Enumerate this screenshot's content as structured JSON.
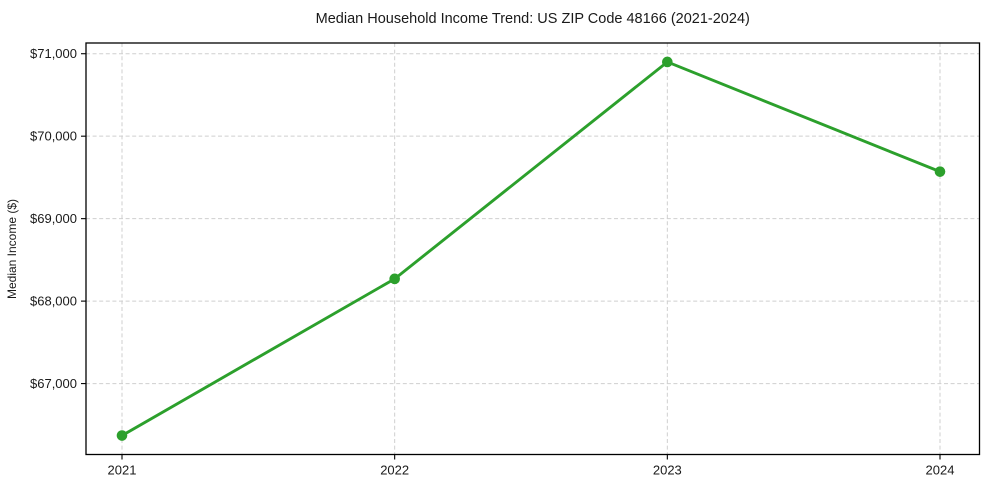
{
  "chart_data": {
    "type": "line",
    "title": "Median Household Income Trend: US ZIP Code 48166 (2021-2024)",
    "xlabel": "",
    "ylabel": "Median Income ($)",
    "categories": [
      "2021",
      "2022",
      "2023",
      "2024"
    ],
    "series": [
      {
        "values": [
          66370,
          68270,
          70900,
          69570
        ],
        "color": "#2ca02c",
        "marker": "circle",
        "line_style": "solid"
      }
    ],
    "ytick_values": [
      67000,
      68000,
      69000,
      70000,
      71000
    ],
    "ytick_labels": [
      "$67,000",
      "$68,000",
      "$69,000",
      "$70,000",
      "$71,000"
    ],
    "ylim": [
      66140,
      71130
    ],
    "grid": {
      "visible": true,
      "style": "dashed",
      "color": "#cfcfcf",
      "axes": "both"
    },
    "legend": {
      "visible": false,
      "position": "none"
    },
    "plot_background": "#ffffff",
    "spine_color": "#000000",
    "text_color": "#1a1a1a"
  }
}
